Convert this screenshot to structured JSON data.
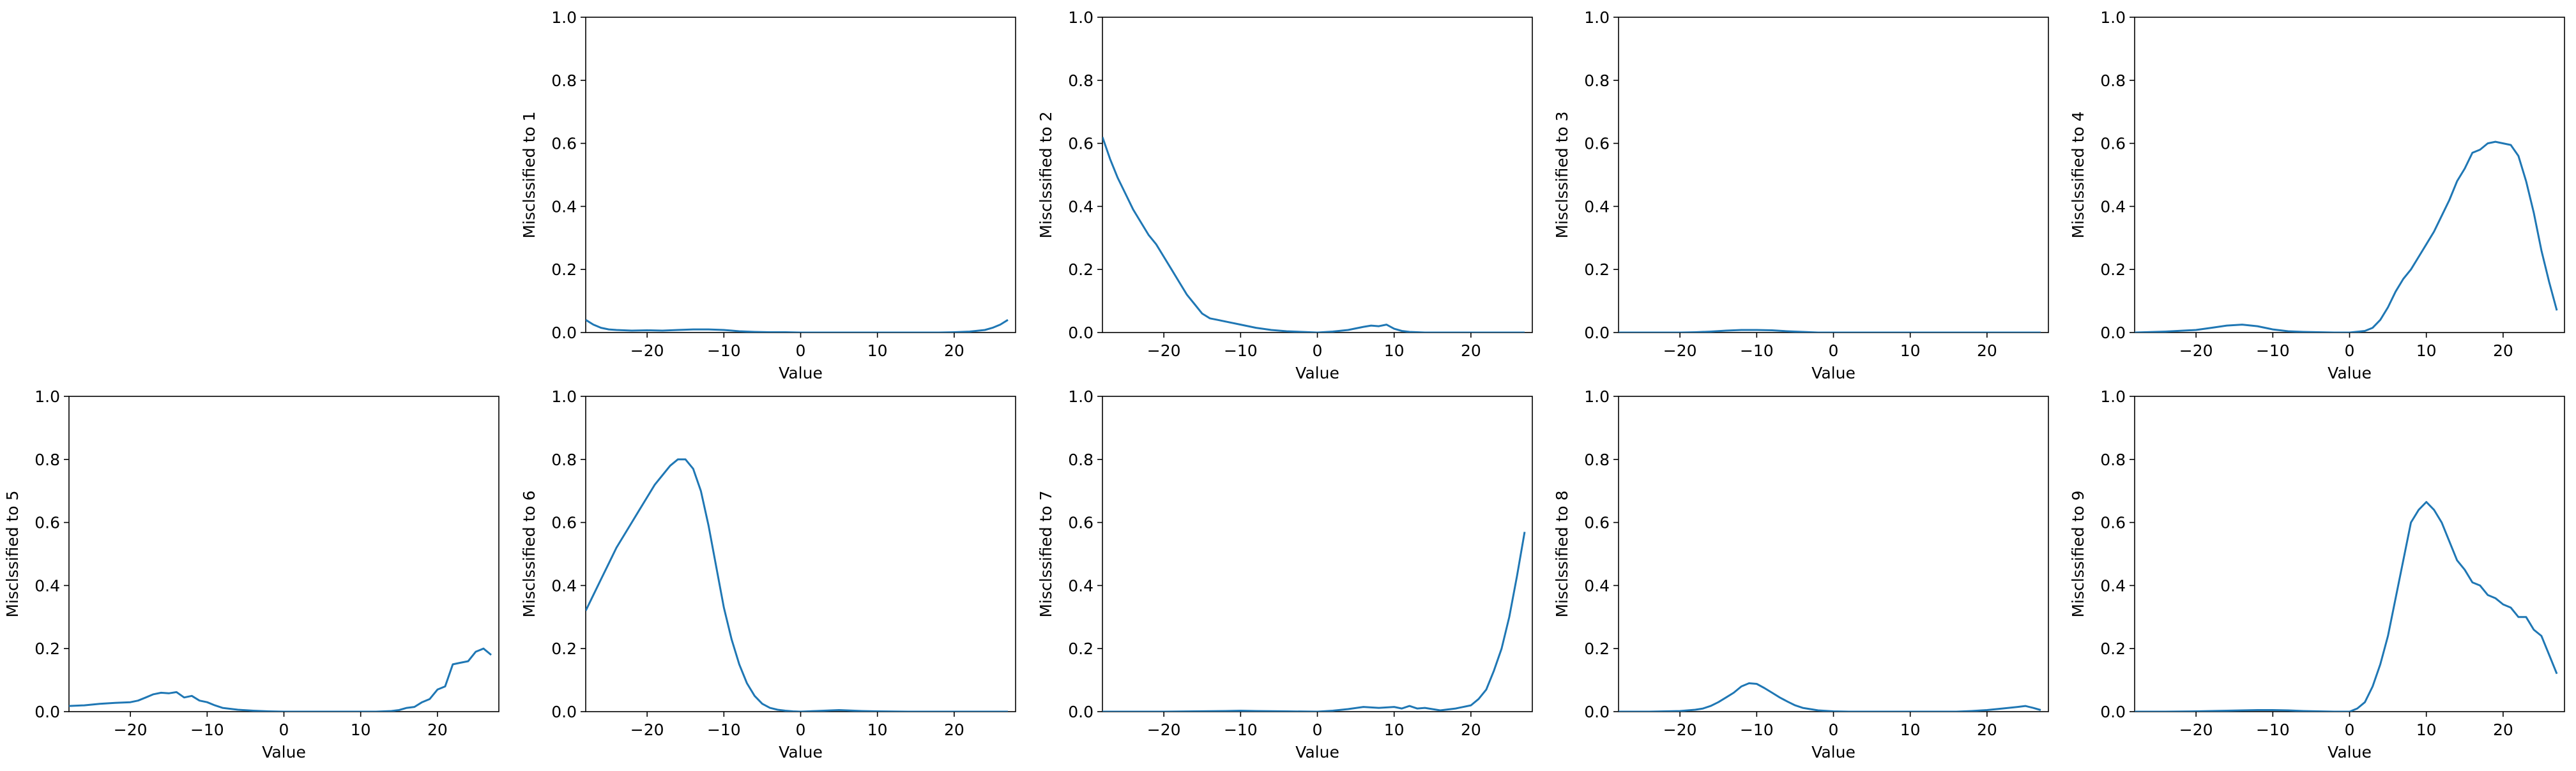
{
  "chart_data": [
    {
      "type": "line",
      "ylabel": "Misclssified to 1",
      "xlabel": "Value",
      "xlim": [
        -28,
        28
      ],
      "ylim": [
        0,
        1
      ],
      "xticks": [
        -20,
        -10,
        0,
        10,
        20
      ],
      "yticks": [
        0.0,
        0.2,
        0.4,
        0.6,
        0.8,
        1.0
      ],
      "line_color": "#1f77b4",
      "series": [
        {
          "x": [
            -28,
            -27,
            -26,
            -25,
            -24,
            -22,
            -20,
            -18,
            -16,
            -14,
            -12,
            -10,
            -8,
            -6,
            -4,
            -2,
            0,
            2,
            4,
            6,
            8,
            10,
            12,
            14,
            16,
            18,
            20,
            22,
            24,
            25,
            26,
            27
          ],
          "y": [
            0.04,
            0.025,
            0.015,
            0.01,
            0.008,
            0.006,
            0.007,
            0.006,
            0.008,
            0.01,
            0.01,
            0.008,
            0.004,
            0.002,
            0.001,
            0.001,
            0.0,
            0.0,
            0.0,
            0.0,
            0.0,
            0.0,
            0.0,
            0.0,
            0.0,
            0.0,
            0.001,
            0.003,
            0.008,
            0.015,
            0.025,
            0.04
          ]
        }
      ]
    },
    {
      "type": "line",
      "ylabel": "Misclssified to 2",
      "xlabel": "Value",
      "xlim": [
        -28,
        28
      ],
      "ylim": [
        0,
        1
      ],
      "xticks": [
        -20,
        -10,
        0,
        10,
        20
      ],
      "yticks": [
        0.0,
        0.2,
        0.4,
        0.6,
        0.8,
        1.0
      ],
      "line_color": "#1f77b4",
      "series": [
        {
          "x": [
            -28,
            -27,
            -26,
            -25,
            -24,
            -23,
            -22,
            -21,
            -20,
            -19,
            -18,
            -17,
            -16,
            -15,
            -14,
            -13,
            -12,
            -10,
            -8,
            -6,
            -4,
            -2,
            0,
            2,
            4,
            6,
            7,
            8,
            9,
            10,
            11,
            12,
            14,
            16,
            18,
            20,
            22,
            24,
            26,
            27
          ],
          "y": [
            0.62,
            0.55,
            0.49,
            0.44,
            0.39,
            0.35,
            0.31,
            0.28,
            0.24,
            0.2,
            0.16,
            0.12,
            0.09,
            0.06,
            0.045,
            0.04,
            0.035,
            0.025,
            0.015,
            0.008,
            0.004,
            0.002,
            0.0,
            0.003,
            0.008,
            0.018,
            0.022,
            0.02,
            0.025,
            0.012,
            0.005,
            0.002,
            0.0,
            0.0,
            0.0,
            0.0,
            0.0,
            0.0,
            0.0,
            0.0
          ]
        }
      ]
    },
    {
      "type": "line",
      "ylabel": "Misclssified to 3",
      "xlabel": "Value",
      "xlim": [
        -28,
        28
      ],
      "ylim": [
        0,
        1
      ],
      "xticks": [
        -20,
        -10,
        0,
        10,
        20
      ],
      "yticks": [
        0.0,
        0.2,
        0.4,
        0.6,
        0.8,
        1.0
      ],
      "line_color": "#1f77b4",
      "series": [
        {
          "x": [
            -28,
            -24,
            -20,
            -18,
            -16,
            -14,
            -12,
            -10,
            -8,
            -6,
            -4,
            -2,
            0,
            4,
            8,
            12,
            16,
            20,
            24,
            27
          ],
          "y": [
            0.0,
            0.0,
            0.0,
            0.001,
            0.003,
            0.006,
            0.008,
            0.008,
            0.007,
            0.004,
            0.002,
            0.0,
            0.0,
            0.0,
            0.0,
            0.0,
            0.0,
            0.0,
            0.0,
            0.0
          ]
        }
      ]
    },
    {
      "type": "line",
      "ylabel": "Misclssified to 4",
      "xlabel": "Value",
      "xlim": [
        -28,
        28
      ],
      "ylim": [
        0,
        1
      ],
      "xticks": [
        -20,
        -10,
        0,
        10,
        20
      ],
      "yticks": [
        0.0,
        0.2,
        0.4,
        0.6,
        0.8,
        1.0
      ],
      "line_color": "#1f77b4",
      "series": [
        {
          "x": [
            -28,
            -24,
            -20,
            -18,
            -16,
            -14,
            -12,
            -10,
            -8,
            -6,
            -4,
            -2,
            0,
            2,
            3,
            4,
            5,
            6,
            7,
            8,
            9,
            10,
            11,
            12,
            13,
            14,
            15,
            16,
            17,
            18,
            19,
            20,
            21,
            22,
            23,
            24,
            25,
            26,
            27
          ],
          "y": [
            0.0,
            0.003,
            0.008,
            0.015,
            0.022,
            0.025,
            0.02,
            0.01,
            0.004,
            0.002,
            0.001,
            0.0,
            0.0,
            0.005,
            0.015,
            0.04,
            0.08,
            0.13,
            0.17,
            0.2,
            0.24,
            0.28,
            0.32,
            0.37,
            0.42,
            0.48,
            0.52,
            0.57,
            0.58,
            0.6,
            0.605,
            0.6,
            0.595,
            0.56,
            0.48,
            0.38,
            0.26,
            0.16,
            0.07
          ]
        }
      ]
    },
    {
      "type": "line",
      "ylabel": "Misclssified to 5",
      "xlabel": "Value",
      "xlim": [
        -28,
        28
      ],
      "ylim": [
        0,
        1
      ],
      "xticks": [
        -20,
        -10,
        0,
        10,
        20
      ],
      "yticks": [
        0.0,
        0.2,
        0.4,
        0.6,
        0.8,
        1.0
      ],
      "line_color": "#1f77b4",
      "series": [
        {
          "x": [
            -28,
            -26,
            -24,
            -22,
            -20,
            -19,
            -18,
            -17,
            -16,
            -15,
            -14,
            -13,
            -12,
            -11,
            -10,
            -9,
            -8,
            -6,
            -4,
            -2,
            0,
            2,
            4,
            6,
            8,
            10,
            12,
            14,
            15,
            16,
            17,
            18,
            19,
            20,
            21,
            22,
            23,
            24,
            25,
            26,
            27
          ],
          "y": [
            0.018,
            0.02,
            0.025,
            0.028,
            0.03,
            0.035,
            0.045,
            0.055,
            0.06,
            0.058,
            0.062,
            0.045,
            0.05,
            0.035,
            0.03,
            0.02,
            0.012,
            0.006,
            0.003,
            0.001,
            0.0,
            0.0,
            0.0,
            0.0,
            0.0,
            0.0,
            0.0,
            0.002,
            0.005,
            0.012,
            0.015,
            0.03,
            0.04,
            0.07,
            0.08,
            0.15,
            0.155,
            0.16,
            0.19,
            0.2,
            0.18
          ]
        }
      ]
    },
    {
      "type": "line",
      "ylabel": "Misclssified to 6",
      "xlabel": "Value",
      "xlim": [
        -28,
        28
      ],
      "ylim": [
        0,
        1
      ],
      "xticks": [
        -20,
        -10,
        0,
        10,
        20
      ],
      "yticks": [
        0.0,
        0.2,
        0.4,
        0.6,
        0.8,
        1.0
      ],
      "line_color": "#1f77b4",
      "series": [
        {
          "x": [
            -28,
            -27,
            -26,
            -25,
            -24,
            -23,
            -22,
            -21,
            -20,
            -19,
            -18,
            -17,
            -16,
            -15,
            -14,
            -13,
            -12,
            -11,
            -10,
            -9,
            -8,
            -7,
            -6,
            -5,
            -4,
            -3,
            -2,
            -1,
            0,
            2,
            4,
            5,
            6,
            8,
            10,
            14,
            18,
            22,
            27
          ],
          "y": [
            0.32,
            0.37,
            0.42,
            0.47,
            0.52,
            0.56,
            0.6,
            0.64,
            0.68,
            0.72,
            0.75,
            0.78,
            0.8,
            0.8,
            0.77,
            0.7,
            0.59,
            0.46,
            0.33,
            0.23,
            0.15,
            0.09,
            0.05,
            0.025,
            0.012,
            0.006,
            0.003,
            0.001,
            0.0,
            0.002,
            0.004,
            0.005,
            0.004,
            0.002,
            0.001,
            0.0,
            0.0,
            0.0,
            0.0
          ]
        }
      ]
    },
    {
      "type": "line",
      "ylabel": "Misclssified to 7",
      "xlabel": "Value",
      "xlim": [
        -28,
        28
      ],
      "ylim": [
        0,
        1
      ],
      "xticks": [
        -20,
        -10,
        0,
        10,
        20
      ],
      "yticks": [
        0.0,
        0.2,
        0.4,
        0.6,
        0.8,
        1.0
      ],
      "line_color": "#1f77b4",
      "series": [
        {
          "x": [
            -28,
            -24,
            -20,
            -16,
            -12,
            -10,
            -8,
            -4,
            0,
            2,
            4,
            6,
            8,
            10,
            11,
            12,
            13,
            14,
            16,
            18,
            20,
            21,
            22,
            23,
            24,
            25,
            26,
            27
          ],
          "y": [
            0.0,
            0.0,
            0.0,
            0.001,
            0.002,
            0.003,
            0.002,
            0.001,
            0.0,
            0.003,
            0.008,
            0.015,
            0.012,
            0.015,
            0.01,
            0.018,
            0.01,
            0.012,
            0.004,
            0.01,
            0.02,
            0.04,
            0.07,
            0.13,
            0.2,
            0.3,
            0.43,
            0.57
          ]
        }
      ]
    },
    {
      "type": "line",
      "ylabel": "Misclssified to 8",
      "xlabel": "Value",
      "xlim": [
        -28,
        28
      ],
      "ylim": [
        0,
        1
      ],
      "xticks": [
        -20,
        -10,
        0,
        10,
        20
      ],
      "yticks": [
        0.0,
        0.2,
        0.4,
        0.6,
        0.8,
        1.0
      ],
      "line_color": "#1f77b4",
      "series": [
        {
          "x": [
            -28,
            -24,
            -20,
            -18,
            -17,
            -16,
            -15,
            -14,
            -13,
            -12,
            -11,
            -10,
            -9,
            -8,
            -7,
            -6,
            -5,
            -4,
            -2,
            0,
            2,
            4,
            8,
            12,
            16,
            18,
            20,
            22,
            24,
            25,
            26,
            27
          ],
          "y": [
            0.0,
            0.0,
            0.002,
            0.006,
            0.01,
            0.018,
            0.03,
            0.045,
            0.06,
            0.08,
            0.09,
            0.088,
            0.075,
            0.06,
            0.045,
            0.032,
            0.02,
            0.012,
            0.004,
            0.001,
            0.0,
            0.0,
            0.0,
            0.0,
            0.0,
            0.002,
            0.005,
            0.01,
            0.015,
            0.018,
            0.012,
            0.005
          ]
        }
      ]
    },
    {
      "type": "line",
      "ylabel": "Misclssified to 9",
      "xlabel": "Value",
      "xlim": [
        -28,
        28
      ],
      "ylim": [
        0,
        1
      ],
      "xticks": [
        -20,
        -10,
        0,
        10,
        20
      ],
      "yticks": [
        0.0,
        0.2,
        0.4,
        0.6,
        0.8,
        1.0
      ],
      "line_color": "#1f77b4",
      "series": [
        {
          "x": [
            -28,
            -24,
            -20,
            -16,
            -14,
            -12,
            -10,
            -8,
            -6,
            -4,
            -2,
            0,
            1,
            2,
            3,
            4,
            5,
            6,
            7,
            8,
            9,
            10,
            11,
            12,
            13,
            14,
            15,
            16,
            17,
            18,
            19,
            20,
            21,
            22,
            23,
            24,
            25,
            26,
            27
          ],
          "y": [
            0.0,
            0.0,
            0.001,
            0.003,
            0.004,
            0.005,
            0.005,
            0.004,
            0.002,
            0.001,
            0.0,
            0.0,
            0.01,
            0.03,
            0.08,
            0.15,
            0.24,
            0.36,
            0.48,
            0.6,
            0.64,
            0.665,
            0.64,
            0.6,
            0.54,
            0.48,
            0.45,
            0.41,
            0.4,
            0.37,
            0.36,
            0.34,
            0.33,
            0.3,
            0.3,
            0.26,
            0.24,
            0.18,
            0.12
          ]
        }
      ]
    }
  ]
}
